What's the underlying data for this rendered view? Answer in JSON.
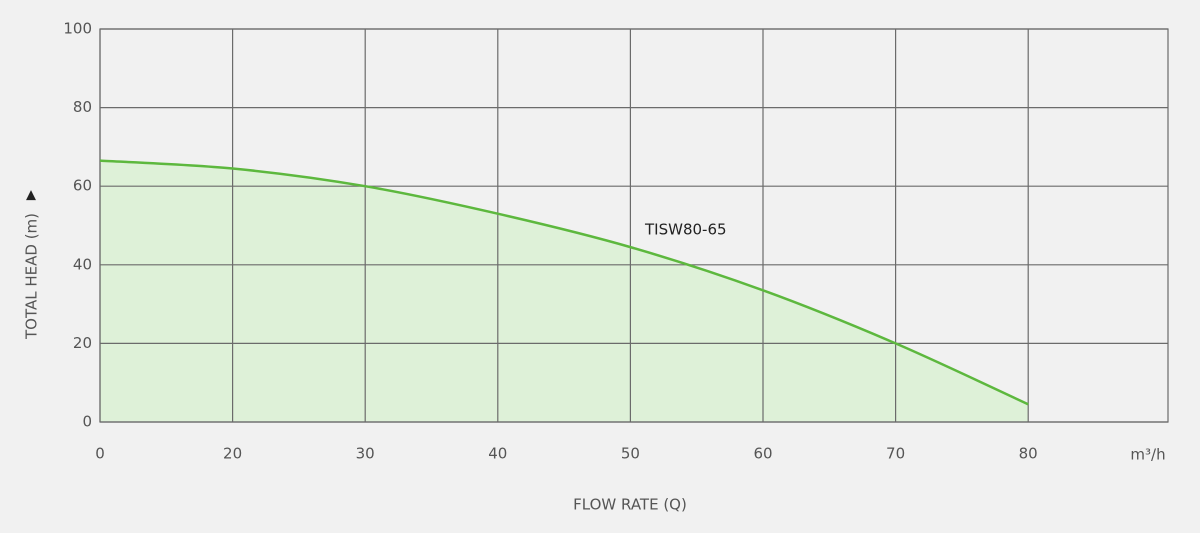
{
  "chart_data": {
    "type": "line",
    "x_label": "FLOW RATE (Q)",
    "y_label": "TOTAL HEAD (m)",
    "y_label_marker": "▲",
    "x_unit": "m³/h",
    "annotation": "TISW80-65",
    "categories": [
      "0",
      "20",
      "30",
      "40",
      "50",
      "60",
      "70",
      "80"
    ],
    "series": [
      {
        "name": "TISW80-65",
        "color": "#5db83e",
        "fill": "#def1d8",
        "values": [
          66.5,
          64.5,
          60,
          53,
          44.5,
          33.5,
          20,
          4.5
        ]
      }
    ],
    "ylim": [
      0,
      100
    ],
    "yticks": [
      0,
      20,
      40,
      60,
      80,
      100
    ],
    "grid": true
  }
}
